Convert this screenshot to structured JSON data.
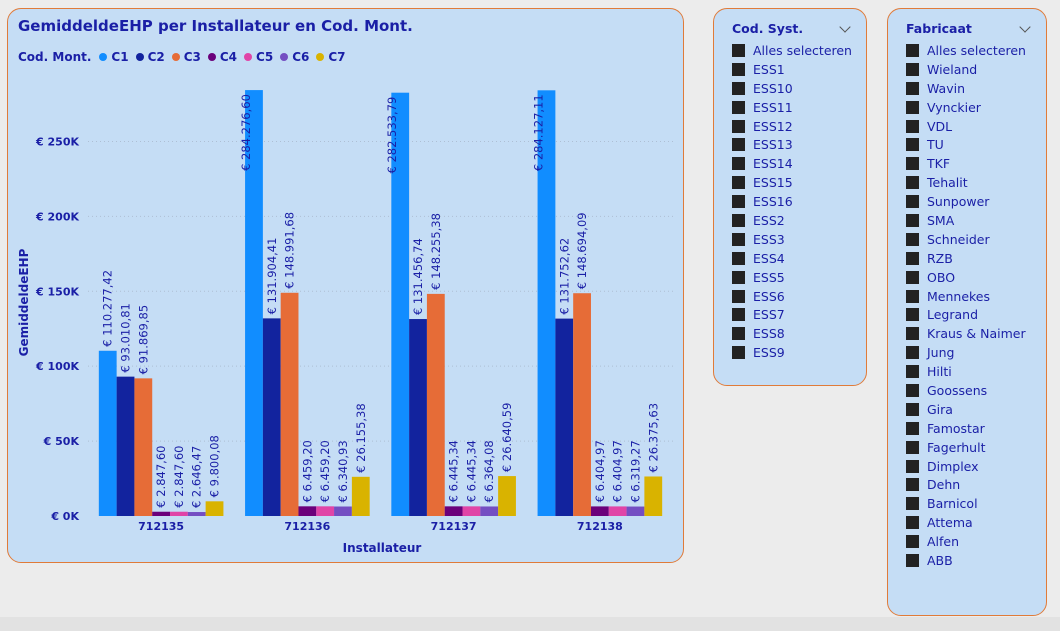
{
  "chart_data": {
    "type": "bar",
    "title": "GemiddeldeEHP per Installateur en Cod. Mont.",
    "legend_title": "Cod. Mont.",
    "legend_position": "top-left",
    "xlabel": "Installateur",
    "ylabel": "GemiddeldeEHP",
    "categories": [
      "712135",
      "712136",
      "712137",
      "712138"
    ],
    "ylim": [
      0,
      285000
    ],
    "yticks": [
      0,
      50000,
      100000,
      150000,
      200000,
      250000
    ],
    "ytick_labels": [
      "€ 0K",
      "€ 50K",
      "€ 100K",
      "€ 150K",
      "€ 200K",
      "€ 250K"
    ],
    "grid": true,
    "series": [
      {
        "name": "C1",
        "color": "#118dff",
        "values": [
          110277.42,
          284276.6,
          282533.79,
          284127.11
        ],
        "labels": [
          "€ 110.277,42",
          "€ 284.276,60",
          "€ 282.533,79",
          "€ 284.127,11"
        ]
      },
      {
        "name": "C2",
        "color": "#12239e",
        "values": [
          93010.81,
          131904.41,
          131456.74,
          131752.62
        ],
        "labels": [
          "€ 93.010,81",
          "€ 131.904,41",
          "€ 131.456,74",
          "€ 131.752,62"
        ]
      },
      {
        "name": "C3",
        "color": "#e66c37",
        "values": [
          91869.85,
          148991.68,
          148255.38,
          148694.09
        ],
        "labels": [
          "€ 91.869,85",
          "€ 148.991,68",
          "€ 148.255,38",
          "€ 148.694,09"
        ]
      },
      {
        "name": "C4",
        "color": "#6b007b",
        "values": [
          2847.6,
          6459.2,
          6445.34,
          6404.97
        ],
        "labels": [
          "€ 2.847,60",
          "€ 6.459,20",
          "€ 6.445,34",
          "€ 6.404,97"
        ]
      },
      {
        "name": "C5",
        "color": "#e044a7",
        "values": [
          2847.6,
          6459.2,
          6445.34,
          6404.97
        ],
        "labels": [
          "€ 2.847,60",
          "€ 6.459,20",
          "€ 6.445,34",
          "€ 6.404,97"
        ]
      },
      {
        "name": "C6",
        "color": "#744ec2",
        "values": [
          2646.47,
          6340.93,
          6364.08,
          6319.27
        ],
        "labels": [
          "€ 2.646,47",
          "€ 6.340,93",
          "€ 6.364,08",
          "€ 6.319,27"
        ]
      },
      {
        "name": "C7",
        "color": "#d9b300",
        "values": [
          9800.08,
          26155.38,
          26640.59,
          26375.63
        ],
        "labels": [
          "€ 9.800,08",
          "€ 26.155,38",
          "€ 26.640,59",
          "€ 26.375,63"
        ]
      }
    ]
  },
  "slicers": [
    {
      "title": "Cod. Syst.",
      "items": [
        "Alles selecteren",
        "ESS1",
        "ESS10",
        "ESS11",
        "ESS12",
        "ESS13",
        "ESS14",
        "ESS15",
        "ESS16",
        "ESS2",
        "ESS3",
        "ESS4",
        "ESS5",
        "ESS6",
        "ESS7",
        "ESS8",
        "ESS9"
      ]
    },
    {
      "title": "Fabricaat",
      "items": [
        "Alles selecteren",
        "Wieland",
        "Wavin",
        "Vynckier",
        "VDL",
        "TU",
        "TKF",
        "Tehalit",
        "Sunpower",
        "SMA",
        "Schneider",
        "RZB",
        "OBO",
        "Mennekes",
        "Legrand",
        "Kraus & Naimer",
        "Jung",
        "Hilti",
        "Goossens",
        "Gira",
        "Famostar",
        "Fagerhult",
        "Dimplex",
        "Dehn",
        "Barnicol",
        "Attema",
        "Alfen",
        "ABB"
      ]
    }
  ]
}
